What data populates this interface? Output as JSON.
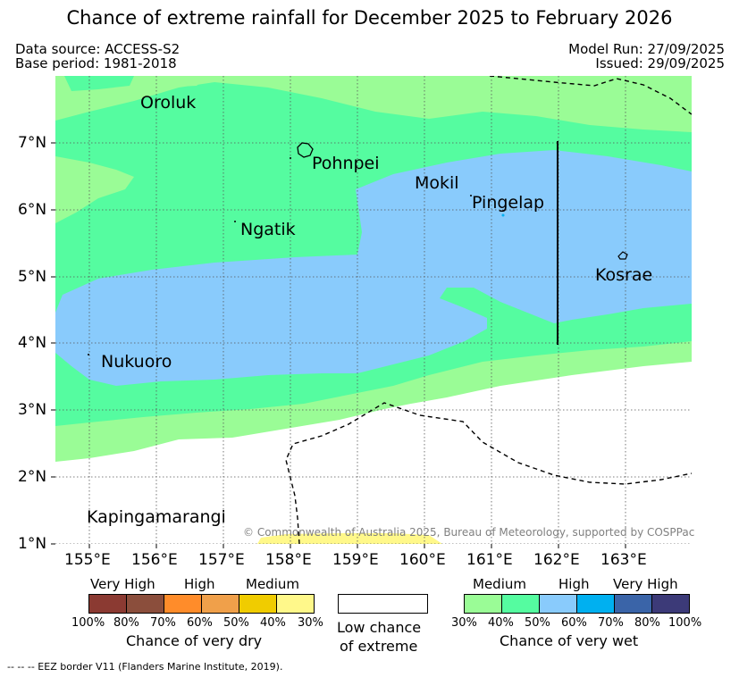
{
  "title": "Chance of extreme rainfall for December 2025 to February 2026",
  "meta": {
    "data_source": "Data source: ACCESS-S2",
    "base_period": "Base period: 1981-2018",
    "model_run": "Model Run: 27/09/2025",
    "issued": "Issued: 29/09/2025"
  },
  "places": [
    "Oroluk",
    "Pohnpei",
    "Mokil",
    "Pingelap",
    "Ngatik",
    "Kosrae",
    "Nukuoro",
    "Kapingamarangi"
  ],
  "lat_ticks": [
    "7°N",
    "6°N",
    "5°N",
    "4°N",
    "3°N",
    "2°N",
    "1°N"
  ],
  "lon_ticks": [
    "155°E",
    "156°E",
    "157°E",
    "158°E",
    "159°E",
    "160°E",
    "161°E",
    "162°E",
    "163°E"
  ],
  "copyright": "© Commonwealth of Australia 2025, Bureau of Meteorology, supported by COSPPac",
  "legend": {
    "dry": {
      "top_labels": [
        "Very High",
        "High",
        "Medium"
      ],
      "pct_labels": [
        "100%",
        "80%",
        "70%",
        "60%",
        "50%",
        "40%",
        "30%"
      ],
      "colors": [
        "#8b3a32",
        "#8b4e3c",
        "#ff8c2a",
        "#f0a04a",
        "#f0cc00",
        "#fff88a"
      ],
      "caption": "Chance of very dry"
    },
    "low": {
      "caption_line1": "Low chance",
      "caption_line2": "of extreme"
    },
    "wet": {
      "top_labels": [
        "Medium",
        "High",
        "Very High"
      ],
      "pct_labels": [
        "30%",
        "40%",
        "50%",
        "60%",
        "70%",
        "80%",
        "100%"
      ],
      "colors": [
        "#9afc96",
        "#55fca0",
        "#89cbfc",
        "#00b0f0",
        "#3a64a8",
        "#3c3a78"
      ],
      "caption": "Chance of very wet"
    }
  },
  "colors": {
    "medium_wet": "#9afc96",
    "high_wet_40": "#55fca0",
    "high_wet_50": "#89cbfc",
    "medium_dry": "#fff88a"
  },
  "footer": "-- -- -- EEZ border V11 (Flanders Marine Institute, 2019)."
}
